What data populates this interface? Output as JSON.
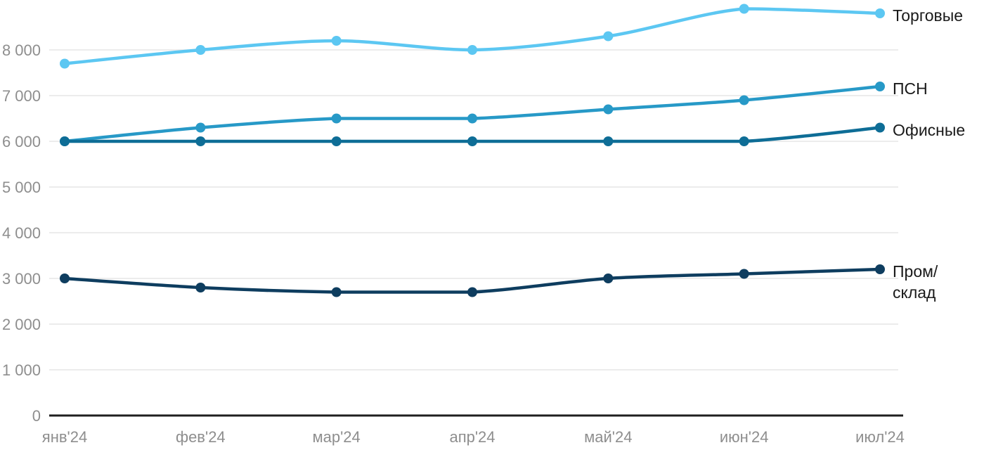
{
  "chart_data": {
    "type": "line",
    "title": "",
    "xlabel": "",
    "ylabel": "",
    "categories": [
      "янв'24",
      "фев'24",
      "мар'24",
      "апр'24",
      "май'24",
      "июн'24",
      "июл'24"
    ],
    "series": [
      {
        "name": "Торговые",
        "legend_lines": [
          "Торговые"
        ],
        "color": "#5cc7f2",
        "values": [
          7700,
          8000,
          8200,
          8000,
          8300,
          8900,
          8800
        ]
      },
      {
        "name": "ПСН",
        "legend_lines": [
          "ПСН"
        ],
        "color": "#2799c7",
        "values": [
          6000,
          6300,
          6500,
          6500,
          6700,
          6900,
          7200
        ]
      },
      {
        "name": "Офисные",
        "legend_lines": [
          "Офисные"
        ],
        "color": "#0e6d96",
        "values": [
          6000,
          6000,
          6000,
          6000,
          6000,
          6000,
          6300
        ]
      },
      {
        "name": "Пром/склад",
        "legend_lines": [
          "Пром/",
          "склад"
        ],
        "color": "#0e3d5f",
        "values": [
          3000,
          2800,
          2700,
          2700,
          3000,
          3100,
          3200
        ]
      }
    ],
    "y_ticks": [
      {
        "value": 0,
        "label": "0"
      },
      {
        "value": 1000,
        "label": "1 000"
      },
      {
        "value": 2000,
        "label": "2 000"
      },
      {
        "value": 3000,
        "label": "3 000"
      },
      {
        "value": 4000,
        "label": "4 000"
      },
      {
        "value": 5000,
        "label": "5 000"
      },
      {
        "value": 6000,
        "label": "6 000"
      },
      {
        "value": 7000,
        "label": "7 000"
      },
      {
        "value": 8000,
        "label": "8 000"
      }
    ],
    "ylim": [
      0,
      9100
    ],
    "grid": true,
    "legend_position": "right-of-line-end",
    "colors": {
      "background": "#ffffff",
      "gridline": "#e6e6e6",
      "axis_line": "#1f1f1f",
      "tick_text": "#8e8e8e",
      "legend_text": "#1a1a1a"
    }
  }
}
